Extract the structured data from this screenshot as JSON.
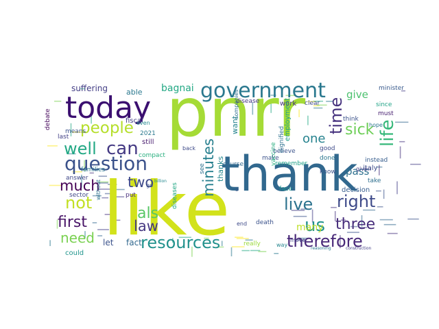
{
  "words": [
    {
      "text": "pnrr",
      "color": "#a5db36"
    },
    {
      "text": "like",
      "color": "#d2e21b"
    },
    {
      "text": "thank",
      "color": "#31688e"
    },
    {
      "text": "today",
      "color": "#3b0f70"
    },
    {
      "text": "government",
      "color": "#2a788e"
    },
    {
      "text": "question",
      "color": "#3b528b"
    },
    {
      "text": "resources",
      "color": "#21918c"
    },
    {
      "text": "therefore",
      "color": "#482878"
    },
    {
      "text": "people",
      "color": "#b5de2b"
    },
    {
      "text": "can",
      "color": "#443983"
    },
    {
      "text": "sick",
      "color": "#6ece58"
    },
    {
      "text": "life",
      "color": "#35b779"
    },
    {
      "text": "time",
      "color": "#46327e"
    },
    {
      "text": "well",
      "color": "#22a884"
    },
    {
      "text": "right",
      "color": "#3e4a89"
    },
    {
      "text": "three",
      "color": "#472d7b"
    },
    {
      "text": "us",
      "color": "#21918c"
    },
    {
      "text": "live",
      "color": "#2c728e"
    },
    {
      "text": "first",
      "color": "#481467"
    },
    {
      "text": "not",
      "color": "#c2df23"
    },
    {
      "text": "need",
      "color": "#7ad151"
    },
    {
      "text": "much",
      "color": "#440154"
    },
    {
      "text": "two",
      "color": "#3e4989"
    },
    {
      "text": "als",
      "color": "#58c765"
    },
    {
      "text": "law",
      "color": "#453781"
    },
    {
      "text": "minutes",
      "color": "#277f8e"
    },
    {
      "text": "one",
      "color": "#26828e"
    },
    {
      "text": "bagnai",
      "color": "#22a884"
    },
    {
      "text": "give",
      "color": "#4ac16d"
    },
    {
      "text": "pass",
      "color": "#2d708e"
    },
    {
      "text": "many",
      "color": "#bddf26"
    },
    {
      "text": "let",
      "color": "#3b528b"
    },
    {
      "text": "fact",
      "color": "#31688e"
    },
    {
      "text": "suffering",
      "color": "#433e85"
    },
    {
      "text": "able",
      "color": "#2a788e"
    },
    {
      "text": "minister",
      "color": "#38598c"
    },
    {
      "text": "disease",
      "color": "#453882"
    },
    {
      "text": "work",
      "color": "#46327e"
    },
    {
      "text": "clear",
      "color": "#3e4989"
    },
    {
      "text": "since",
      "color": "#20a386"
    },
    {
      "text": "must",
      "color": "#482071"
    },
    {
      "text": "employment",
      "color": "#1f9e89"
    },
    {
      "text": "want",
      "color": "#25838e"
    },
    {
      "text": "believe",
      "color": "#3b528b"
    },
    {
      "text": "good",
      "color": "#3e4a89"
    },
    {
      "text": "decision",
      "color": "#365c8d"
    },
    {
      "text": "companies",
      "color": "#2e6e8e"
    },
    {
      "text": "fiscal",
      "color": "#433e85"
    },
    {
      "text": "2021",
      "color": "#2a788e"
    },
    {
      "text": "still",
      "color": "#481c6e"
    },
    {
      "text": "even",
      "color": "#23898e"
    },
    {
      "text": "means",
      "color": "#3b528b"
    },
    {
      "text": "last",
      "color": "#424086"
    },
    {
      "text": "debate",
      "color": "#46085c"
    },
    {
      "text": "families",
      "color": "#2a788e"
    },
    {
      "text": "compact",
      "color": "#29af7f"
    },
    {
      "text": "put",
      "color": "#472d7b"
    },
    {
      "text": "go",
      "color": "#3b528b"
    },
    {
      "text": "billion",
      "color": "#23888e"
    },
    {
      "text": "answer",
      "color": "#3f4788"
    },
    {
      "text": "sector",
      "color": "#404688"
    },
    {
      "text": "without",
      "color": "#2c728e"
    },
    {
      "text": "could",
      "color": "#1f948c"
    },
    {
      "text": "really",
      "color": "#9bd93c"
    },
    {
      "text": "way",
      "color": "#25858e"
    },
    {
      "text": "move",
      "color": "#424186"
    },
    {
      "text": "given",
      "color": "#433e85"
    },
    {
      "text": "italy",
      "color": "#3e4c8a"
    },
    {
      "text": "take",
      "color": "#2e6f8e"
    },
    {
      "text": "instead",
      "color": "#365d8d"
    },
    {
      "text": "know",
      "color": "#3b528b"
    },
    {
      "text": "done",
      "color": "#2a768e"
    },
    {
      "text": "death",
      "color": "#3b528b"
    },
    {
      "text": "end",
      "color": "#3e4a89"
    },
    {
      "text": "face",
      "color": "#21918c"
    },
    {
      "text": "make",
      "color": "#3b528b"
    },
    {
      "text": "dignified",
      "color": "#2d708e"
    },
    {
      "text": "think",
      "color": "#3b528b"
    },
    {
      "text": "hope",
      "color": "#2b748e"
    },
    {
      "text": "remember",
      "color": "#1fa088"
    },
    {
      "text": "course",
      "color": "#31688e"
    },
    {
      "text": "thanks",
      "color": "#24878e"
    },
    {
      "text": "see",
      "color": "#2c718e"
    },
    {
      "text": "back",
      "color": "#3e4a89"
    },
    {
      "text": "diseases",
      "color": "#22a884"
    },
    {
      "text": "vaccine",
      "color": "#29af7f"
    },
    {
      "text": "reasoning",
      "color": "#2a788e"
    },
    {
      "text": "construction",
      "color": "#433e85"
    },
    {
      "text": "3",
      "color": "#3b528b"
    }
  ]
}
